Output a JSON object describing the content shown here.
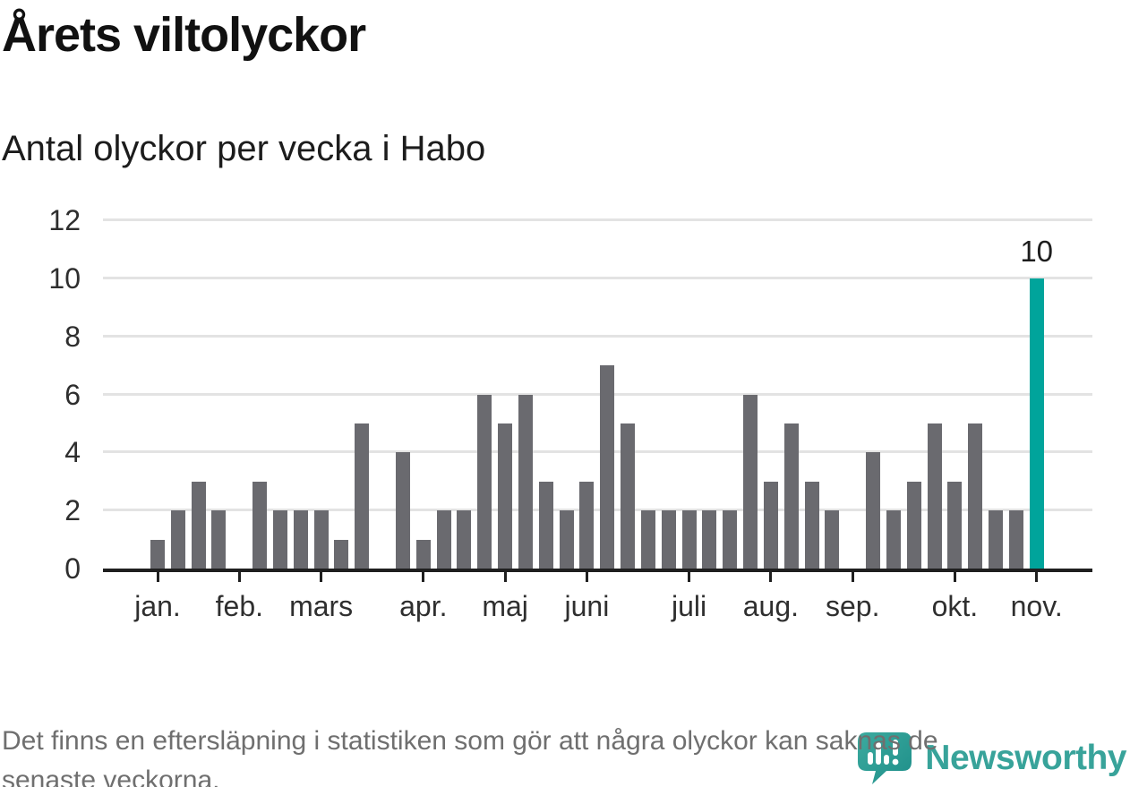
{
  "header": {
    "title": "Årets viltolyckor",
    "subtitle": "Antal olyckor per vecka i Habo"
  },
  "chart_data": {
    "type": "bar",
    "title": "Årets viltolyckor",
    "subtitle": "Antal olyckor per vecka i Habo",
    "xlabel": "",
    "ylabel": "",
    "ylim": [
      0,
      12
    ],
    "yticks": [
      0,
      2,
      4,
      6,
      8,
      10,
      12
    ],
    "grid": true,
    "legend": false,
    "bar_color": "#6a6a6f",
    "values_per_week": [
      1,
      2,
      3,
      2,
      0,
      3,
      2,
      2,
      2,
      1,
      5,
      0,
      4,
      1,
      2,
      2,
      6,
      5,
      6,
      3,
      2,
      3,
      7,
      5,
      2,
      2,
      2,
      2,
      2,
      6,
      3,
      5,
      3,
      2,
      0,
      4,
      2,
      3,
      5,
      3,
      5,
      2,
      2,
      10
    ],
    "month_ticks": [
      {
        "label": "jan.",
        "week": 0
      },
      {
        "label": "feb.",
        "week": 4
      },
      {
        "label": "mars",
        "week": 8
      },
      {
        "label": "apr.",
        "week": 13
      },
      {
        "label": "maj",
        "week": 17
      },
      {
        "label": "juni",
        "week": 21
      },
      {
        "label": "juli",
        "week": 26
      },
      {
        "label": "aug.",
        "week": 30
      },
      {
        "label": "sep.",
        "week": 34
      },
      {
        "label": "okt.",
        "week": 39
      },
      {
        "label": "nov.",
        "week": 43
      }
    ],
    "highlight": {
      "index": 43,
      "value": 10,
      "label": "10",
      "color": "#00a49b"
    }
  },
  "footer": {
    "note": "Det finns en eftersläpning i statistiken som gör att några olyckor kan saknas de\nsenaste veckorna."
  },
  "logo": {
    "text": "Newsworthy"
  }
}
